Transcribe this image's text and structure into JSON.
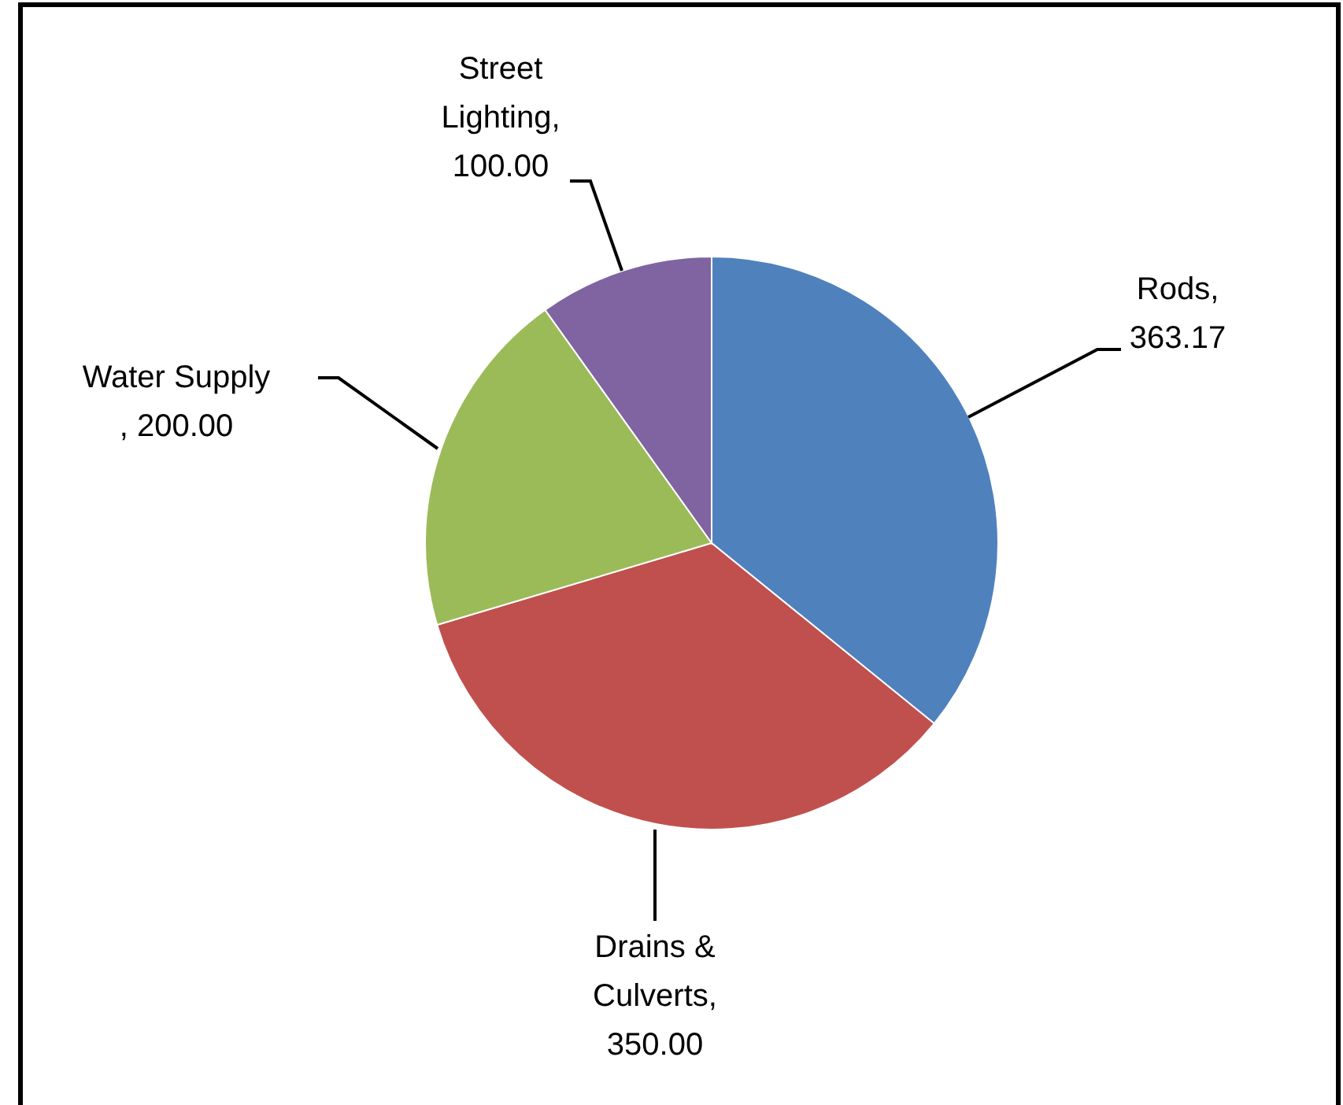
{
  "chart_data": {
    "type": "pie",
    "categories": [
      "Rods",
      "Drains & Culverts",
      "Water Supply",
      "Street Lighting"
    ],
    "values": [
      363.17,
      350,
      200,
      100
    ],
    "value_labels": [
      ", 363.17",
      ", 350.00",
      ", 200.00",
      ", 100.00"
    ],
    "colors": [
      "#4f81bd",
      "#c0504d",
      "#9bbb59",
      "#8064a2"
    ]
  }
}
